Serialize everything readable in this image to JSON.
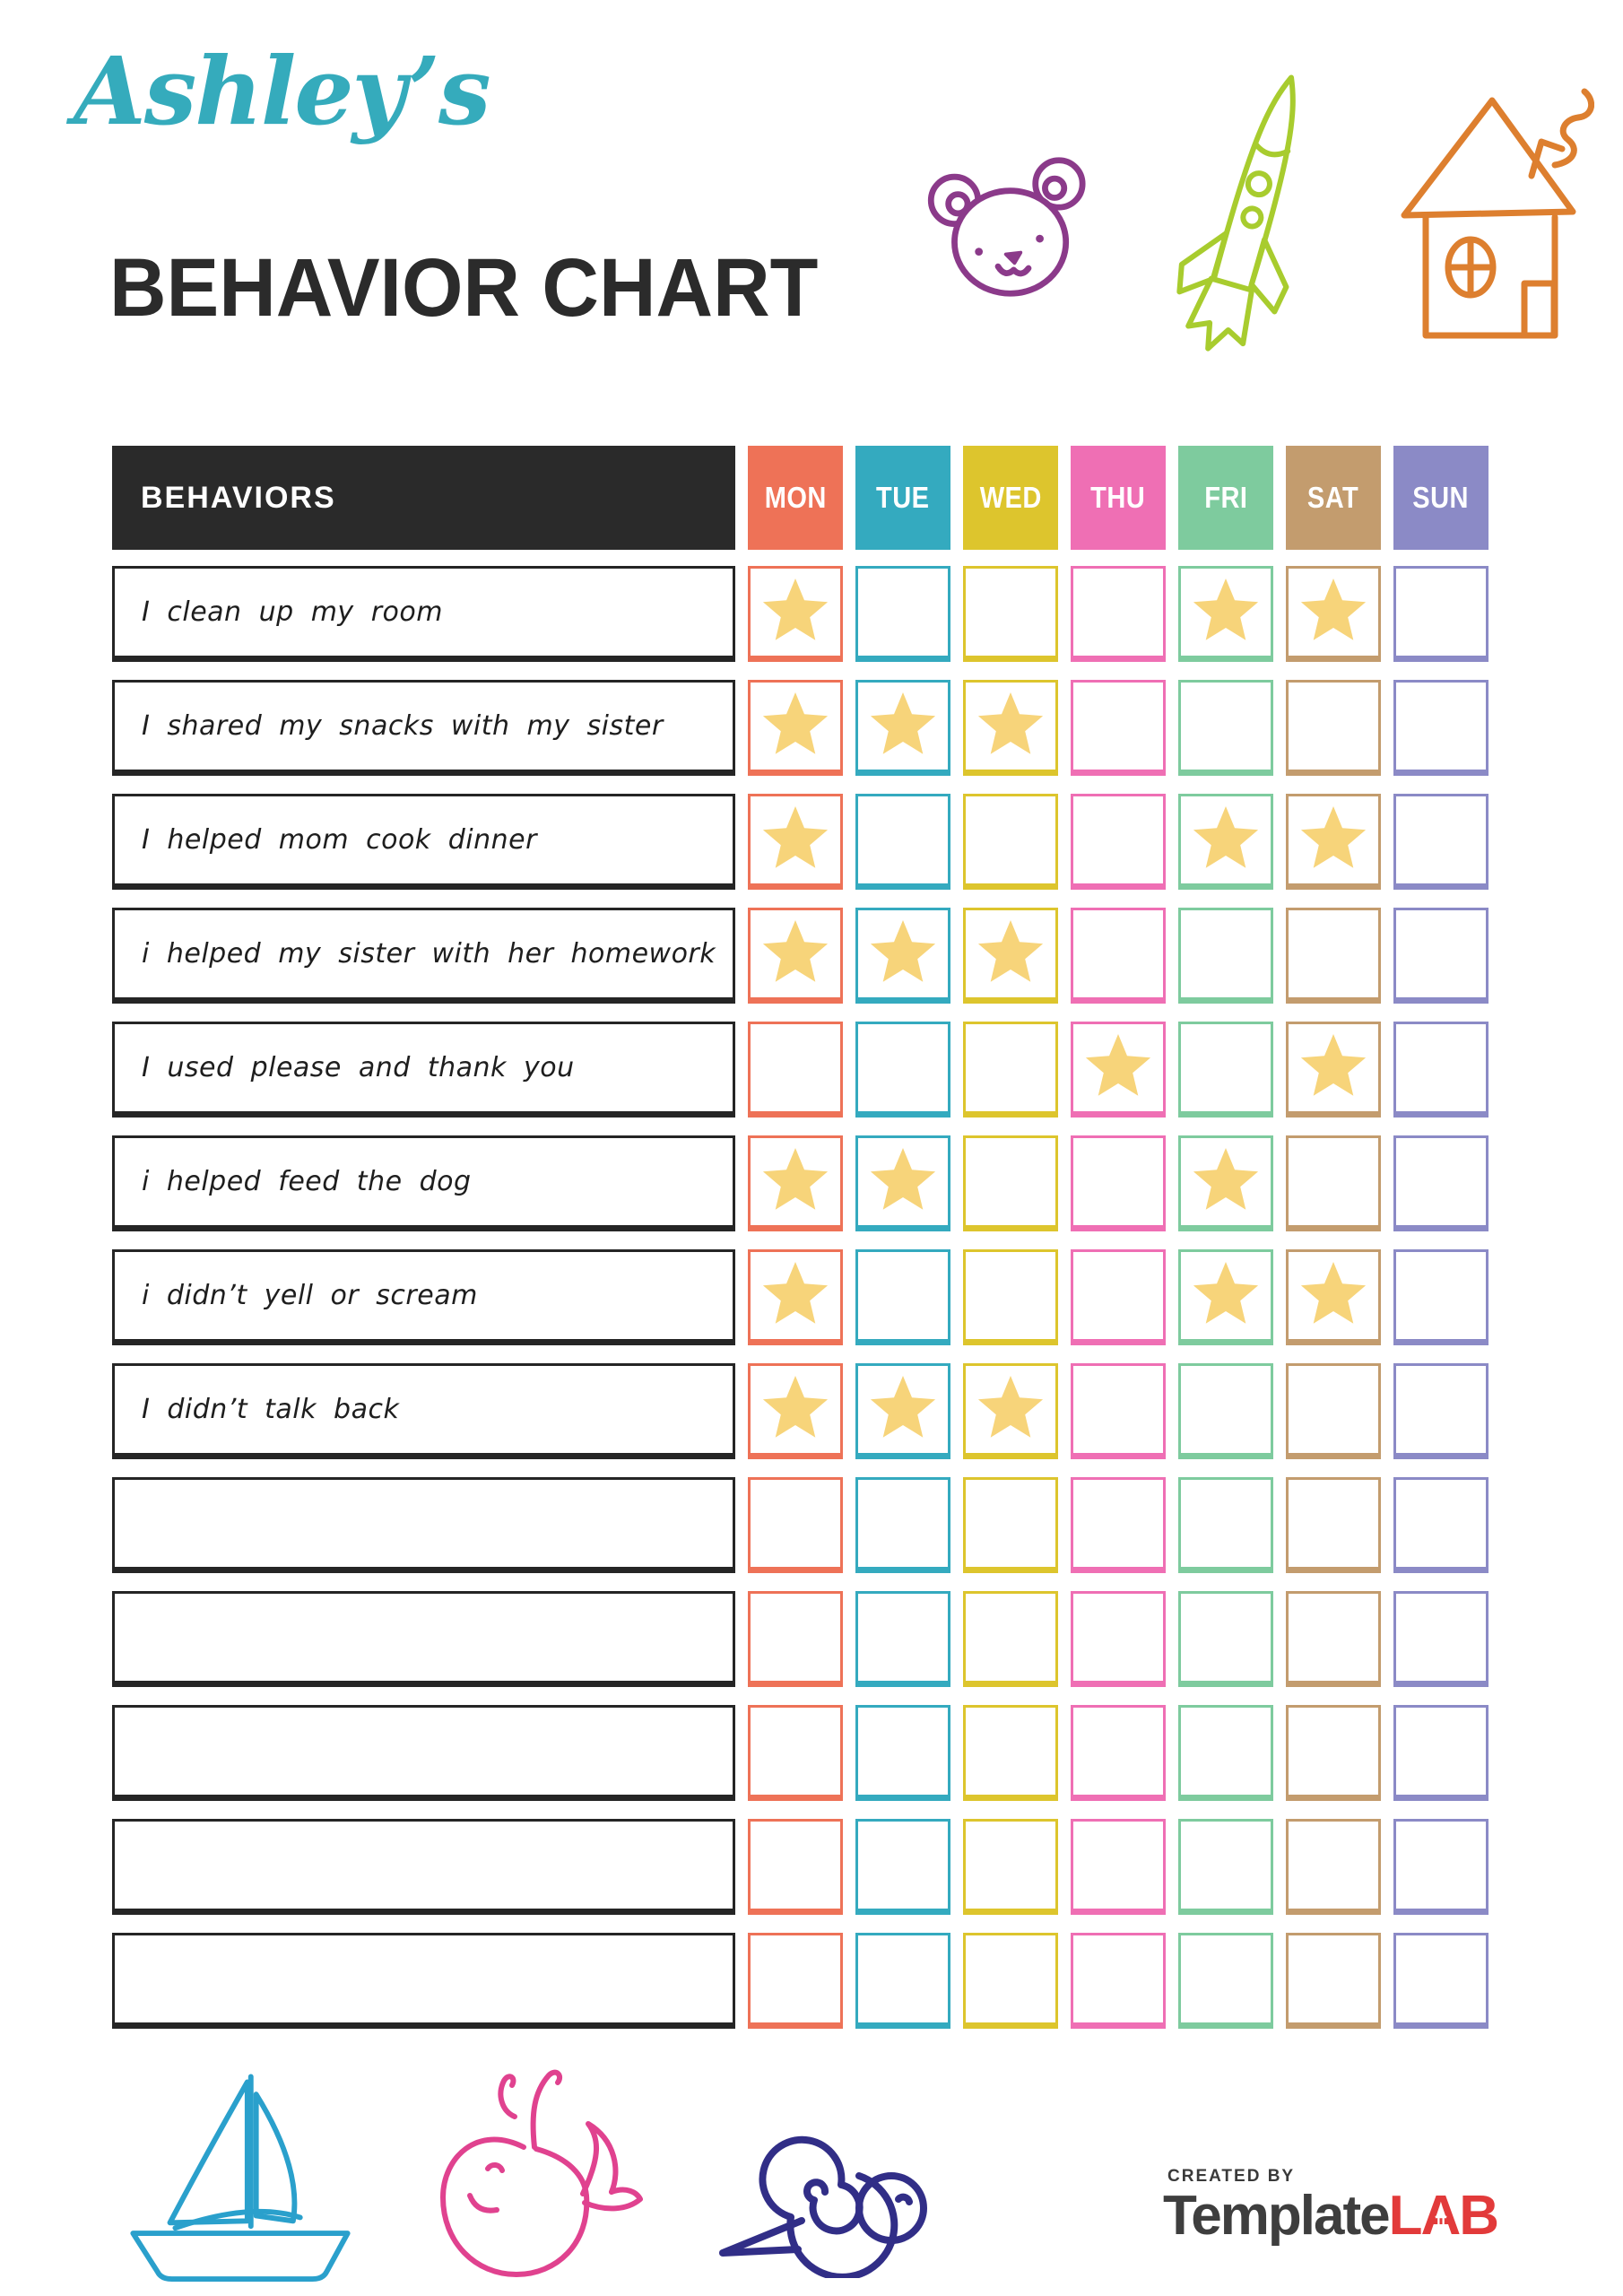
{
  "page": {
    "name_script": "Ashley’s",
    "title": "BEHAVIOR CHART"
  },
  "colors": {
    "accent_teal": "#35abbc",
    "title_dark": "#2b2b2b",
    "table_header_dark": "#2a2a2a",
    "row_border": "#252525",
    "bear_doodle": "#8b3a8a",
    "rocket_doodle": "#a8cc2e",
    "house_doodle": "#dd7f2f",
    "sailboat_doodle": "#2aa0cc",
    "whale_doodle": "#e0428f",
    "snail_doodle": "#312e87"
  },
  "table": {
    "behaviors_header": "BEHAVIORS",
    "star_color": "#f7d47a",
    "days": [
      {
        "label": "MON",
        "color": "#ee7257"
      },
      {
        "label": "TUE",
        "color": "#34aabf"
      },
      {
        "label": "WED",
        "color": "#ddc52d"
      },
      {
        "label": "THU",
        "color": "#ef6fb4"
      },
      {
        "label": "FRI",
        "color": "#7ecb9e"
      },
      {
        "label": "SAT",
        "color": "#c39c6e"
      },
      {
        "label": "SUN",
        "color": "#8b8ac6"
      }
    ],
    "rows": [
      {
        "label": "I clean up my room",
        "stars": [
          true,
          false,
          false,
          false,
          true,
          true,
          false
        ]
      },
      {
        "label": "I shared my snacks with my sister",
        "stars": [
          true,
          true,
          true,
          false,
          false,
          false,
          false
        ]
      },
      {
        "label": "I helped mom cook dinner",
        "stars": [
          true,
          false,
          false,
          false,
          true,
          true,
          false
        ]
      },
      {
        "label": "i helped my sister with her homework",
        "stars": [
          true,
          true,
          true,
          false,
          false,
          false,
          false
        ]
      },
      {
        "label": "I used please and thank you",
        "stars": [
          false,
          false,
          false,
          true,
          false,
          true,
          false
        ]
      },
      {
        "label": "i helped feed the dog",
        "stars": [
          true,
          true,
          false,
          false,
          true,
          false,
          false
        ]
      },
      {
        "label": "i didn’t yell or scream",
        "stars": [
          true,
          false,
          false,
          false,
          true,
          true,
          false
        ]
      },
      {
        "label": "I didn’t talk back",
        "stars": [
          true,
          true,
          true,
          false,
          false,
          false,
          false
        ]
      },
      {
        "label": "",
        "stars": [
          false,
          false,
          false,
          false,
          false,
          false,
          false
        ]
      },
      {
        "label": "",
        "stars": [
          false,
          false,
          false,
          false,
          false,
          false,
          false
        ]
      },
      {
        "label": "",
        "stars": [
          false,
          false,
          false,
          false,
          false,
          false,
          false
        ]
      },
      {
        "label": "",
        "stars": [
          false,
          false,
          false,
          false,
          false,
          false,
          false
        ]
      },
      {
        "label": "",
        "stars": [
          false,
          false,
          false,
          false,
          false,
          false,
          false
        ]
      }
    ]
  },
  "footer": {
    "created_by": "CREATED BY",
    "brand_template": "Template",
    "brand_lab_l": "L",
    "brand_lab_a": "A",
    "brand_lab_b": "B",
    "brand_red": "#e23a3a",
    "brand_gray": "#3e3e3e"
  }
}
